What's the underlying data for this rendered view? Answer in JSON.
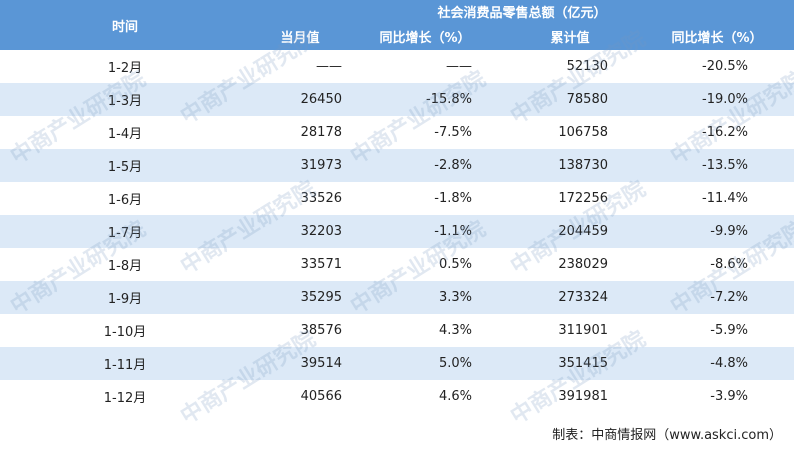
{
  "table": {
    "header": {
      "time": "时间",
      "group": "社会消费品零售总额（亿元）",
      "columns": [
        "当月值",
        "同比增长（%）",
        "累计值",
        "同比增长（%）"
      ]
    },
    "rows": [
      [
        "1-2月",
        "——",
        "——",
        "52130",
        "-20.5%"
      ],
      [
        "1-3月",
        "26450",
        "-15.8%",
        "78580",
        "-19.0%"
      ],
      [
        "1-4月",
        "28178",
        "-7.5%",
        "106758",
        "-16.2%"
      ],
      [
        "1-5月",
        "31973",
        "-2.8%",
        "138730",
        "-13.5%"
      ],
      [
        "1-6月",
        "33526",
        "-1.8%",
        "172256",
        "-11.4%"
      ],
      [
        "1-7月",
        "32203",
        "-1.1%",
        "204459",
        "-9.9%"
      ],
      [
        "1-8月",
        "33571",
        "0.5%",
        "238029",
        "-8.6%"
      ],
      [
        "1-9月",
        "35295",
        "3.3%",
        "273324",
        "-7.2%"
      ],
      [
        "1-10月",
        "38576",
        "4.3%",
        "311901",
        "-5.9%"
      ],
      [
        "1-11月",
        "39514",
        "5.0%",
        "351415",
        "-4.8%"
      ],
      [
        "1-12月",
        "40566",
        "4.6%",
        "391981",
        "-3.9%"
      ]
    ]
  },
  "source": "制表：中商情报网（www.askci.com）",
  "watermark": "中商产业研究院"
}
